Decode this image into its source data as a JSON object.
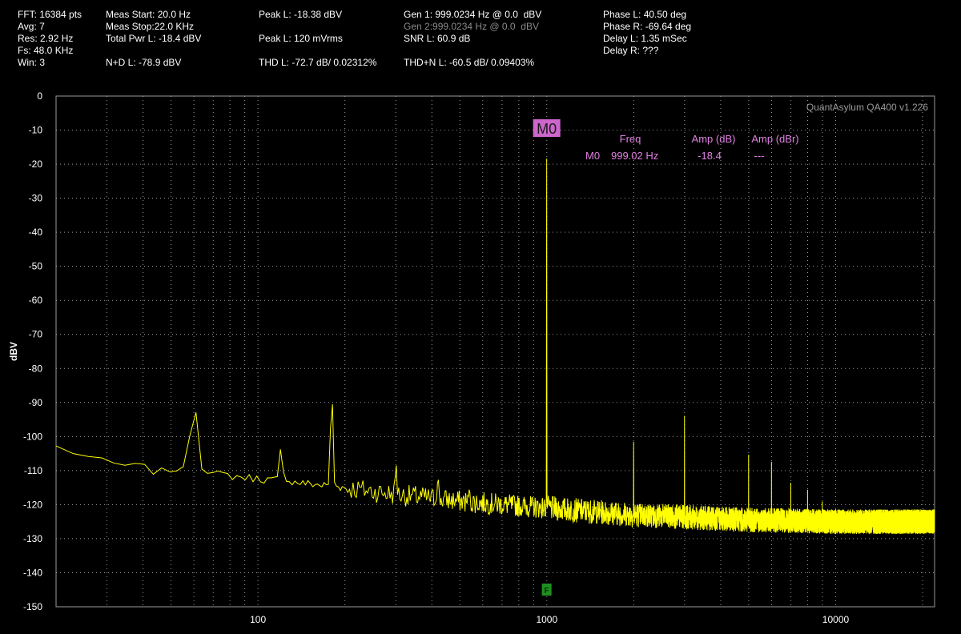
{
  "header": {
    "col1": [
      "FFT: 16384 pts",
      "Avg: 7",
      "Res: 2.92 Hz",
      "Fs: 48.0 KHz",
      "Win: 3"
    ],
    "col2": [
      "Meas Start: 20.0 Hz",
      "Meas Stop:22.0 KHz",
      "Total Pwr L: -18.4 dBV"
    ],
    "nd": "N+D L: -78.9 dBV",
    "peak_dbv": "Peak L: -18.38 dBV",
    "peak_mv": "Peak L: 120 mVrms",
    "thd": "THD L: -72.7 dB/ 0.02312%",
    "gen1": "Gen 1: 999.0234 Hz @ 0.0  dBV",
    "gen2": "Gen 2:999.0234 Hz @ 0.0  dBV",
    "snr": "SNR L: 60.9 dB",
    "thdn": "THD+N L: -60.5 dB/ 0.09403%",
    "col5": [
      "Phase L: 40.50 deg",
      "Phase R: -69.64 deg",
      "Delay L: 1.35 mSec",
      "Delay R: ???"
    ]
  },
  "watermark": "QuantAsylum QA400 v1.226",
  "marker": {
    "tag": "M0",
    "headers": [
      "Freq",
      "Amp (dB)",
      "Amp (dBr)"
    ],
    "row": [
      "M0",
      "999.02 Hz",
      "-18.4",
      "---"
    ],
    "freq_hz": 999.02,
    "amp_db": -18.4
  },
  "fundamental_flag": "F",
  "colors": {
    "trace": "#ffff00",
    "marker": "#cc66cc",
    "marker_text": "#e080e0",
    "flag": "#1f8f1f",
    "grid": "#9a9a9a"
  },
  "chart_data": {
    "type": "line",
    "xscale": "log",
    "xlim": [
      20,
      22000
    ],
    "ylim": [
      -150,
      0
    ],
    "ylabel": "dBV",
    "yticks": [
      0,
      -10,
      -20,
      -30,
      -40,
      -50,
      -60,
      -70,
      -80,
      -90,
      -100,
      -110,
      -120,
      -130,
      -140,
      -150
    ],
    "xticks": [
      100,
      1000,
      10000
    ],
    "grid": true,
    "series": [
      {
        "floor": [
          [
            20,
            -103
          ],
          [
            25,
            -105.5
          ],
          [
            30,
            -108
          ],
          [
            40,
            -109
          ],
          [
            45,
            -110.5
          ],
          [
            55,
            -110
          ],
          [
            70,
            -111
          ],
          [
            90,
            -112
          ],
          [
            120,
            -113
          ],
          [
            200,
            -115
          ],
          [
            300,
            -117
          ],
          [
            500,
            -119
          ],
          [
            1000,
            -121
          ],
          [
            2000,
            -123
          ],
          [
            5000,
            -124.5
          ],
          [
            10000,
            -125
          ],
          [
            22000,
            -125
          ]
        ],
        "peaks": [
          [
            60,
            -89
          ],
          [
            120,
            -103.5
          ],
          [
            180,
            -83.5
          ],
          [
            300,
            -96.5
          ],
          [
            420,
            -102
          ],
          [
            540,
            -109
          ],
          [
            999.02,
            -18.4
          ],
          [
            1998,
            -98.5
          ],
          [
            2997,
            -93
          ],
          [
            4995,
            -104.5
          ],
          [
            5994,
            -104.5
          ],
          [
            6993,
            -109
          ],
          [
            7992,
            -108
          ],
          [
            8991,
            -110
          ],
          [
            9990,
            -111
          ],
          [
            10989,
            -111.5
          ],
          [
            11988,
            -112
          ],
          [
            12987,
            -112
          ],
          [
            13986,
            -111.5
          ],
          [
            14985,
            -111.5
          ],
          [
            15984,
            -113
          ],
          [
            16983,
            -112
          ],
          [
            17982,
            -113
          ],
          [
            18981,
            -111
          ],
          [
            19980,
            -111
          ]
        ]
      }
    ]
  }
}
